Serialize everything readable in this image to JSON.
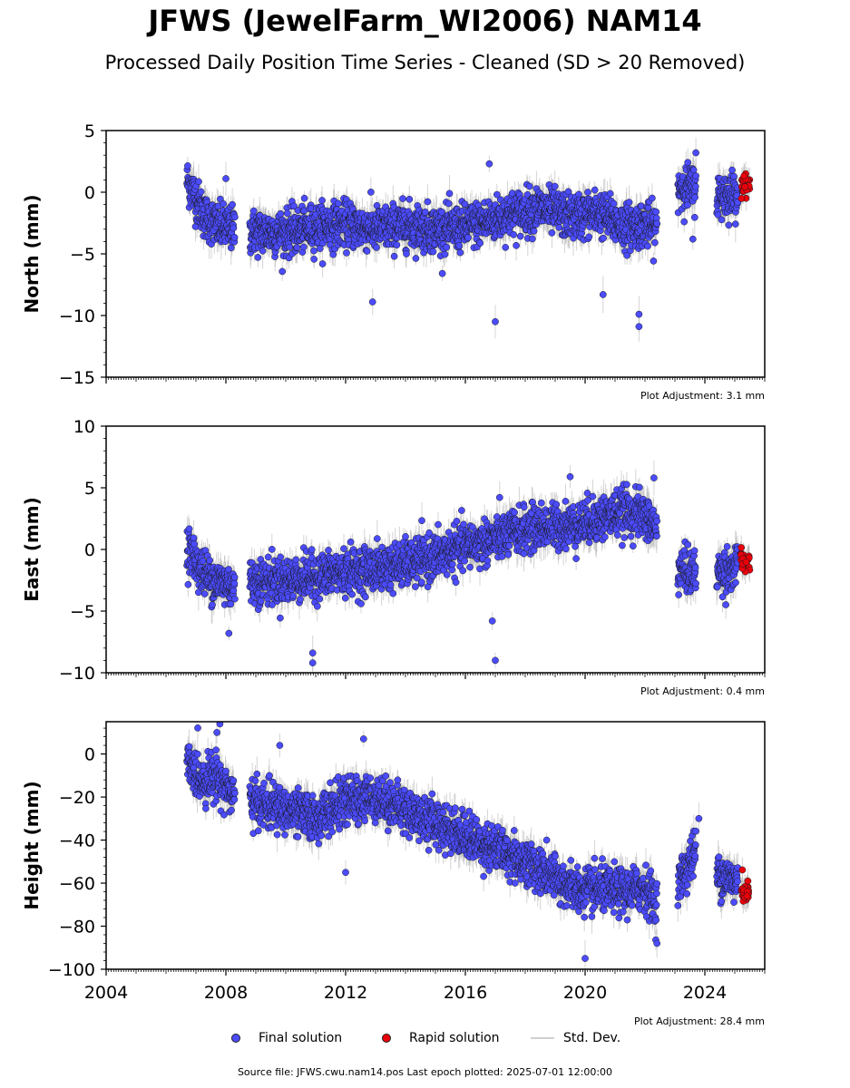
{
  "title": "JFWS (JewelFarm_WI2006) NAM14",
  "subtitle": "Processed Daily Position Time Series - Cleaned (SD > 20 Removed)",
  "legend": {
    "final": "Final solution",
    "rapid": "Rapid solution",
    "std": "Std. Dev."
  },
  "source": "Source file: JFWS.cwu.nam14.pos  Last epoch plotted: 2025-07-01 12:00:00",
  "colors": {
    "final": "#4b4bff",
    "rapid": "#e8000b",
    "std": "#b0b0b0"
  },
  "chart_data": [
    {
      "type": "scatter",
      "ylabel": "North (mm)",
      "ylim": [
        -15,
        5
      ],
      "yticks": [
        5,
        0,
        -5,
        -10,
        -15
      ],
      "ytick_labels": [
        "5",
        "0",
        "−5",
        "−10",
        "−15"
      ],
      "xlim": [
        2004,
        2026
      ],
      "adjustment": "Plot Adjustment: 3.1 mm",
      "segments": [
        {
          "x": [
            2006.7,
            2007.3,
            2007.8,
            2008.3
          ],
          "y": [
            1.0,
            -2.0,
            -2.8,
            -3.0
          ]
        },
        {
          "x": [
            2008.8,
            2010.0,
            2011.0,
            2012.0,
            2013.0,
            2014.0,
            2015.0,
            2015.8,
            2016.5,
            2017.5,
            2018.5,
            2019.5,
            2020.5,
            2021.3,
            2022.0,
            2022.4
          ],
          "y": [
            -3.2,
            -3.3,
            -2.8,
            -2.6,
            -3.0,
            -2.7,
            -3.0,
            -2.9,
            -2.5,
            -1.8,
            -1.3,
            -2.0,
            -1.7,
            -2.8,
            -2.6,
            -3.0
          ]
        },
        {
          "x": [
            2023.1,
            2023.7
          ],
          "y": [
            0.5,
            0.3
          ]
        },
        {
          "x": [
            2024.4,
            2025.1
          ],
          "y": [
            -0.3,
            0.0
          ]
        }
      ],
      "rapid": {
        "x": [
          2025.2,
          2025.5
        ],
        "y": [
          0.5,
          0.5
        ]
      },
      "outliers": [
        {
          "x": 2012.9,
          "y": -8.9
        },
        {
          "x": 2017.0,
          "y": -10.5
        },
        {
          "x": 2016.8,
          "y": 2.3
        },
        {
          "x": 2020.6,
          "y": -8.3
        },
        {
          "x": 2021.8,
          "y": -10.9
        },
        {
          "x": 2021.8,
          "y": -9.9
        },
        {
          "x": 2023.6,
          "y": -3.8
        },
        {
          "x": 2008.0,
          "y": 1.1
        },
        {
          "x": 2023.7,
          "y": 3.2
        }
      ]
    },
    {
      "type": "scatter",
      "ylabel": "East (mm)",
      "ylim": [
        -10,
        10
      ],
      "yticks": [
        10,
        5,
        0,
        -5,
        -10
      ],
      "ytick_labels": [
        "10",
        "5",
        "0",
        "−5",
        "−10"
      ],
      "xlim": [
        2004,
        2026
      ],
      "adjustment": "Plot Adjustment: 0.4 mm",
      "segments": [
        {
          "x": [
            2006.7,
            2007.2,
            2007.7,
            2008.3
          ],
          "y": [
            0.3,
            -1.8,
            -2.6,
            -3.0
          ]
        },
        {
          "x": [
            2008.8,
            2010.0,
            2011.0,
            2012.0,
            2013.0,
            2014.0,
            2015.0,
            2016.0,
            2016.7,
            2017.5,
            2018.5,
            2019.5,
            2020.5,
            2021.3,
            2022.0,
            2022.4
          ],
          "y": [
            -2.6,
            -2.5,
            -2.2,
            -1.8,
            -1.6,
            -1.2,
            -0.6,
            0.3,
            0.6,
            1.3,
            1.8,
            1.9,
            2.5,
            3.1,
            2.7,
            1.5
          ]
        },
        {
          "x": [
            2023.1,
            2023.7
          ],
          "y": [
            -1.5,
            -2.0
          ]
        },
        {
          "x": [
            2024.4,
            2025.1
          ],
          "y": [
            -1.8,
            -1.5
          ]
        }
      ],
      "rapid": {
        "x": [
          2025.2,
          2025.5
        ],
        "y": [
          -1.0,
          -1.0
        ]
      },
      "outliers": [
        {
          "x": 2010.9,
          "y": -9.2
        },
        {
          "x": 2010.9,
          "y": -8.4
        },
        {
          "x": 2017.0,
          "y": -9.0
        },
        {
          "x": 2016.9,
          "y": -5.8
        },
        {
          "x": 2019.5,
          "y": 5.9
        },
        {
          "x": 2022.3,
          "y": 5.8
        },
        {
          "x": 2008.1,
          "y": -6.8
        }
      ]
    },
    {
      "type": "scatter",
      "ylabel": "Height (mm)",
      "ylim": [
        -100,
        15
      ],
      "yticks": [
        0,
        -20,
        -40,
        -60,
        -80,
        -100
      ],
      "ytick_labels": [
        "0",
        "−20",
        "−40",
        "−60",
        "−80",
        "−100"
      ],
      "xlim": [
        2004,
        2026
      ],
      "xticks": [
        2004,
        2008,
        2012,
        2016,
        2020,
        2024
      ],
      "xtick_labels": [
        "2004",
        "2008",
        "2012",
        "2016",
        "2020",
        "2024"
      ],
      "adjustment": "Plot Adjustment: 28.4 mm",
      "segments": [
        {
          "x": [
            2006.7,
            2007.2,
            2007.7,
            2008.3
          ],
          "y": [
            -5,
            -12,
            -10,
            -20
          ]
        },
        {
          "x": [
            2008.8,
            2010.0,
            2011.0,
            2012.0,
            2013.0,
            2014.0,
            2015.0,
            2016.0,
            2017.0,
            2018.0,
            2019.0,
            2019.8,
            2020.5,
            2021.3,
            2022.0,
            2022.4
          ],
          "y": [
            -22,
            -26,
            -30,
            -22,
            -20,
            -26,
            -32,
            -38,
            -44,
            -50,
            -58,
            -64,
            -63,
            -64,
            -62,
            -70
          ]
        },
        {
          "x": [
            2023.1,
            2023.7
          ],
          "y": [
            -60,
            -45
          ]
        },
        {
          "x": [
            2024.4,
            2025.1
          ],
          "y": [
            -55,
            -60
          ]
        }
      ],
      "rapid": {
        "x": [
          2025.2,
          2025.5
        ],
        "y": [
          -65,
          -65
        ]
      },
      "outliers": [
        {
          "x": 2007.8,
          "y": 14
        },
        {
          "x": 2007.7,
          "y": 10
        },
        {
          "x": 2012.6,
          "y": 7
        },
        {
          "x": 2012.0,
          "y": -55
        },
        {
          "x": 2020.0,
          "y": -95
        },
        {
          "x": 2022.4,
          "y": -88
        },
        {
          "x": 2023.8,
          "y": -30
        },
        {
          "x": 2009.8,
          "y": 4
        }
      ]
    }
  ]
}
